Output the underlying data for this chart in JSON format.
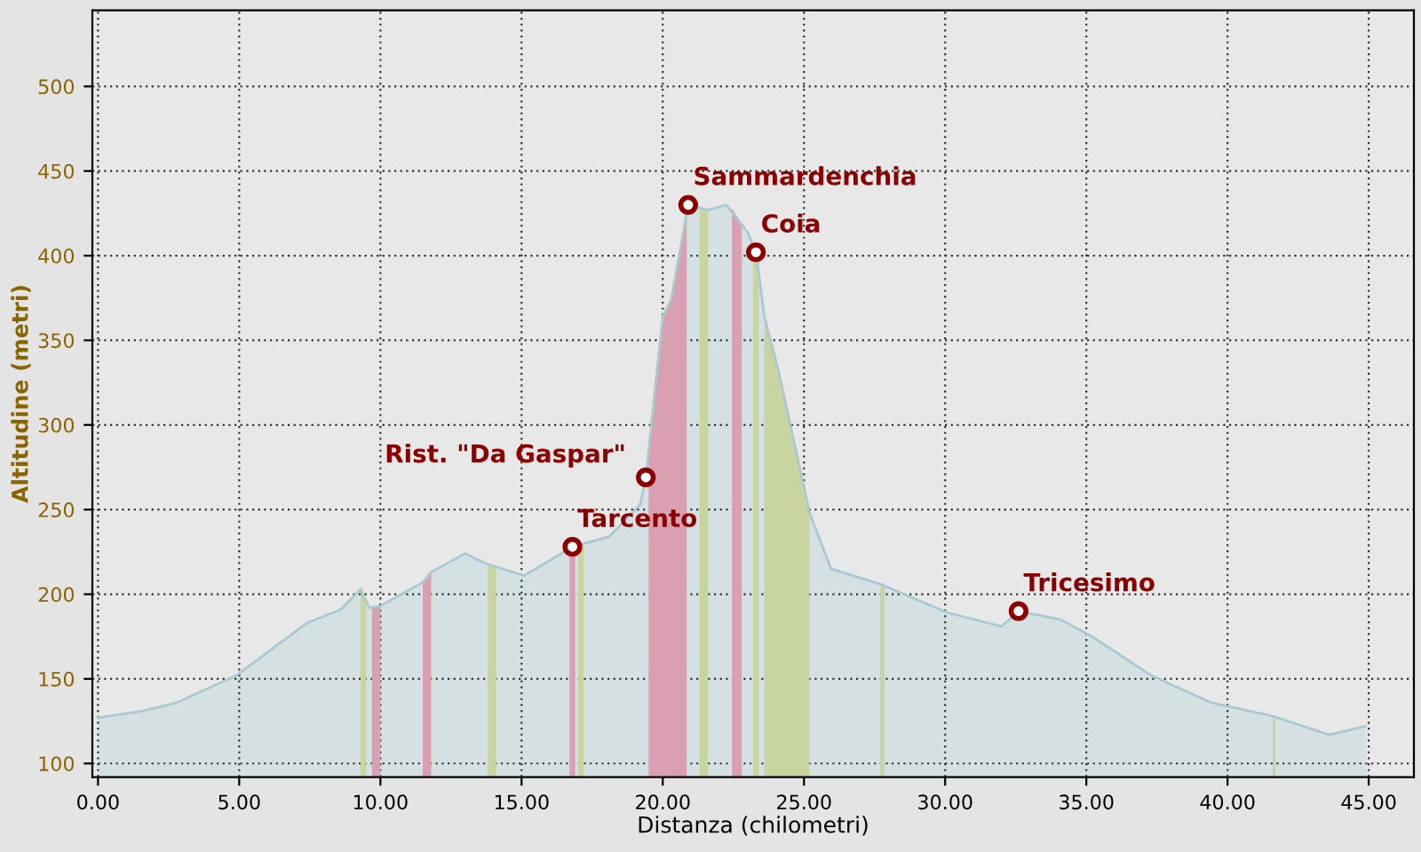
{
  "chart_data": {
    "type": "area",
    "xlabel": "Distanza (chilometri)",
    "ylabel": "Altitudine (metri)",
    "xlim": [
      -0.2,
      46.6
    ],
    "ylim": [
      92,
      545
    ],
    "xticks": [
      {
        "value": 0,
        "label": "0.00"
      },
      {
        "value": 5,
        "label": "5.00"
      },
      {
        "value": 10,
        "label": "10.00"
      },
      {
        "value": 15,
        "label": "15.00"
      },
      {
        "value": 20,
        "label": "20.00"
      },
      {
        "value": 25,
        "label": "25.00"
      },
      {
        "value": 30,
        "label": "30.00"
      },
      {
        "value": 35,
        "label": "35.00"
      },
      {
        "value": 40,
        "label": "40.00"
      },
      {
        "value": 45,
        "label": "45.00"
      }
    ],
    "yticks": [
      100,
      150,
      200,
      250,
      300,
      350,
      400,
      450,
      500
    ],
    "grid": true,
    "legend": false,
    "series": [
      {
        "color": "#d5e0e3",
        "x": [
          0,
          1.57,
          2.8,
          4.9,
          7.4,
          8.6,
          9.3,
          9.6,
          10.0,
          11.5,
          11.8,
          13.0,
          13.75,
          15.1,
          16.8,
          18.1,
          19.2,
          19.4,
          20.0,
          20.3,
          20.9,
          21.6,
          22.25,
          23.0,
          23.3,
          23.6,
          24.1,
          25.2,
          25.96,
          27.7,
          30.1,
          32.0,
          32.6,
          34.1,
          35.2,
          37.3,
          39.4,
          41.6,
          42.5,
          43.6,
          44.9
        ],
        "values": [
          127,
          131,
          136,
          152,
          183,
          191,
          203,
          192,
          193,
          207,
          213,
          224,
          218,
          211,
          228,
          234,
          253,
          269,
          364,
          374,
          430,
          427,
          430,
          414,
          402,
          364,
          332,
          248,
          215,
          206,
          189,
          181,
          190,
          185,
          175,
          152,
          136,
          128,
          123,
          117,
          122
        ]
      },
      {
        "color": "#d9a0b2",
        "x": [
          19.5,
          20.0,
          20.3,
          20.85
        ],
        "values": [
          285,
          364,
          374,
          429
        ]
      },
      {
        "color": "#c8d5a0",
        "x": [
          23.6,
          24.1,
          25.2
        ],
        "values": [
          364,
          332,
          248
        ]
      },
      {
        "color": "#d9a0b2",
        "x": [
          9.7,
          10.0
        ],
        "values": [
          192,
          193
        ]
      },
      {
        "color": "#d9a0b2",
        "x": [
          11.5,
          11.8
        ],
        "values": [
          207,
          213
        ]
      },
      {
        "color": "#d9a0b2",
        "x": [
          16.7,
          16.9
        ],
        "values": [
          227,
          228
        ]
      },
      {
        "color": "#d9a0b2",
        "x": [
          22.45,
          22.8
        ],
        "values": [
          428,
          419
        ]
      },
      {
        "color": "#c8d5a0",
        "x": [
          9.3,
          9.5
        ],
        "values": [
          203,
          196
        ]
      },
      {
        "color": "#c8d5a0",
        "x": [
          13.8,
          14.1
        ],
        "values": [
          218,
          217
        ]
      },
      {
        "color": "#c8d5a0",
        "x": [
          17.0,
          17.2
        ],
        "values": [
          229,
          230
        ]
      },
      {
        "color": "#c8d5a0",
        "x": [
          21.3,
          21.6
        ],
        "values": [
          428,
          427
        ]
      },
      {
        "color": "#c8d5a0",
        "x": [
          23.2,
          23.4
        ],
        "values": [
          405,
          398
        ]
      },
      {
        "color": "#c8d5a0",
        "x": [
          27.7,
          27.85
        ],
        "values": [
          206,
          205
        ]
      },
      {
        "color": "#c8d5a0",
        "x": [
          41.6,
          41.7
        ],
        "values": [
          128,
          127
        ]
      }
    ],
    "annotations": [
      {
        "text": "Sammardenchia",
        "x": 20.9,
        "y": 430
      },
      {
        "text": "Coia",
        "x": 23.3,
        "y": 402
      },
      {
        "text": "Rist. \"Da Gaspar\"",
        "x": 19.4,
        "y": 269
      },
      {
        "text": "Tarcento",
        "x": 16.8,
        "y": 228
      },
      {
        "text": "Tricesimo",
        "x": 32.6,
        "y": 190
      }
    ]
  }
}
